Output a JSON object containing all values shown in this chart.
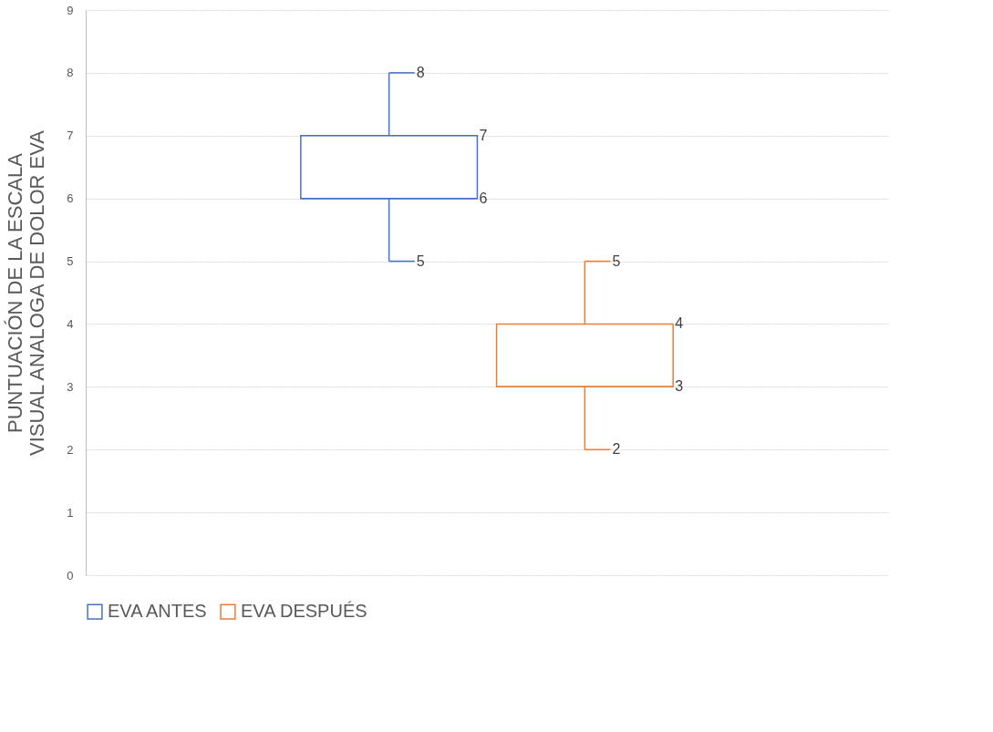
{
  "chart_data": {
    "type": "box",
    "ylabel": "PUNTUACIÓN DE LA ESCALA\nVISUAL ANALOGA DE DOLOR EVA",
    "categories": [
      null
    ],
    "series": [
      {
        "name": "EVA ANTES",
        "color": "#4472c4",
        "boxes": [
          {
            "low": 5,
            "q1": 6,
            "median": 6,
            "q3": 7,
            "high": 8
          }
        ]
      },
      {
        "name": "EVA DESPUÉS",
        "color": "#ed7d31",
        "boxes": [
          {
            "low": 2,
            "q1": 3,
            "median": 3,
            "q3": 4,
            "high": 5
          }
        ]
      }
    ],
    "ylim": [
      0,
      9
    ],
    "yticks": [
      0,
      1,
      2,
      3,
      4,
      5,
      6,
      7,
      8,
      9
    ],
    "grid": "y",
    "legend": "bottom",
    "annotations": [
      "5",
      "6",
      "7",
      "8",
      "2",
      "3",
      "4",
      "5"
    ]
  }
}
